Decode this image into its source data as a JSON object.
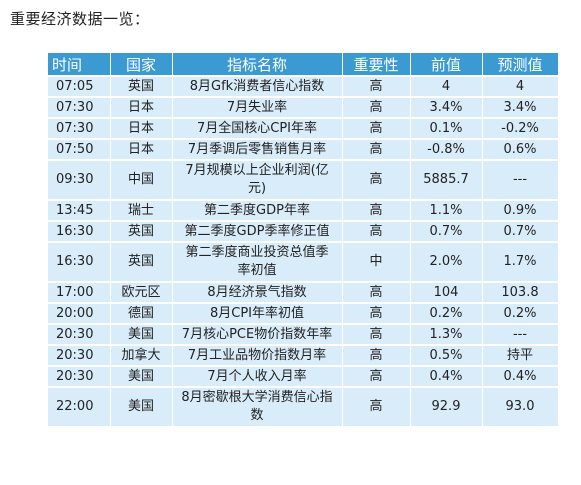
{
  "heading": "重要经济数据一览：",
  "table": {
    "headers": {
      "time": "时间",
      "country": "国家",
      "indicator": "指标名称",
      "importance": "重要性",
      "previous": "前值",
      "forecast": "预测值"
    },
    "rows": [
      {
        "time": "07:05",
        "country": "英国",
        "indicator": "8月Gfk消费者信心指数",
        "importance": "高",
        "previous": "4",
        "forecast": "4"
      },
      {
        "time": "07:30",
        "country": "日本",
        "indicator": "7月失业率",
        "importance": "高",
        "previous": "3.4%",
        "forecast": "3.4%"
      },
      {
        "time": "07:30",
        "country": "日本",
        "indicator": "7月全国核心CPI年率",
        "importance": "高",
        "previous": "0.1%",
        "forecast": "-0.2%"
      },
      {
        "time": "07:50",
        "country": "日本",
        "indicator": "7月季调后零售销售月率",
        "importance": "高",
        "previous": "-0.8%",
        "forecast": "0.6%"
      },
      {
        "time": "09:30",
        "country": "中国",
        "indicator": "7月规模以上企业利润(亿元)",
        "importance": "高",
        "previous": "5885.7",
        "forecast": "---"
      },
      {
        "time": "13:45",
        "country": "瑞士",
        "indicator": "第二季度GDP年率",
        "importance": "高",
        "previous": "1.1%",
        "forecast": "0.9%"
      },
      {
        "time": "16:30",
        "country": "英国",
        "indicator": "第二季度GDP季率修正值",
        "importance": "高",
        "previous": "0.7%",
        "forecast": "0.7%"
      },
      {
        "time": "16:30",
        "country": "英国",
        "indicator": "第二季度商业投资总值季率初值",
        "importance": "中",
        "previous": "2.0%",
        "forecast": "1.7%"
      },
      {
        "time": "17:00",
        "country": "欧元区",
        "indicator": "8月经济景气指数",
        "importance": "高",
        "previous": "104",
        "forecast": "103.8"
      },
      {
        "time": "20:00",
        "country": "德国",
        "indicator": "8月CPI年率初值",
        "importance": "高",
        "previous": "0.2%",
        "forecast": "0.2%"
      },
      {
        "time": "20:30",
        "country": "美国",
        "indicator": "7月核心PCE物价指数年率",
        "importance": "高",
        "previous": "1.3%",
        "forecast": "---"
      },
      {
        "time": "20:30",
        "country": "加拿大",
        "indicator": "7月工业品物价指数月率",
        "importance": "高",
        "previous": "0.5%",
        "forecast": "持平"
      },
      {
        "time": "20:30",
        "country": "美国",
        "indicator": "7月个人收入月率",
        "importance": "高",
        "previous": "0.4%",
        "forecast": "0.4%"
      },
      {
        "time": "22:00",
        "country": "美国",
        "indicator": "8月密歇根大学消费信心指数",
        "importance": "高",
        "previous": "92.9",
        "forecast": "93.0"
      }
    ]
  }
}
